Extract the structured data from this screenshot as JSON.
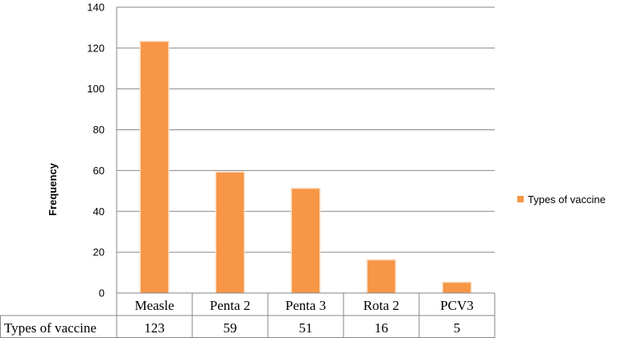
{
  "chart_data": {
    "type": "bar",
    "categories": [
      "Measle",
      "Penta 2",
      "Penta 3",
      "Rota 2",
      "PCV3"
    ],
    "series": [
      {
        "name": "Types of vaccine",
        "values": [
          123,
          59,
          51,
          16,
          5
        ]
      }
    ],
    "ylabel": "Frequency",
    "xlabel": "",
    "ylim": [
      0,
      140
    ],
    "yticks": [
      0,
      20,
      40,
      60,
      80,
      100,
      120,
      140
    ],
    "grid": true,
    "legend": "right",
    "data_table": true,
    "colors": {
      "bar": "#F79646",
      "grid": "#868686",
      "axis": "#868686"
    }
  }
}
